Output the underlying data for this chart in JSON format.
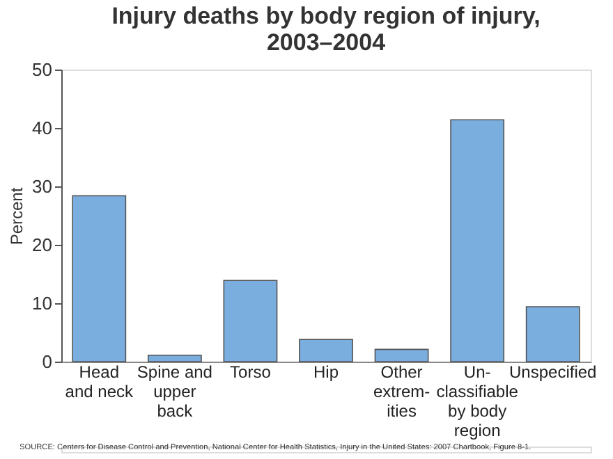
{
  "chart_data": {
    "type": "bar",
    "title": "Injury deaths by body region of injury,\n2003–2004",
    "ylabel": "Percent",
    "categories": [
      "Head\nand neck",
      "Spine and\nupper\nback",
      "Torso",
      "Hip",
      "Other\nextrem-\nities",
      "Un-\nclassifiable\nby body\nregion",
      "Unspecified"
    ],
    "values": [
      28.4,
      1.1,
      13.9,
      3.8,
      2.1,
      41.4,
      9.4
    ],
    "color": "#7aaedf",
    "ylim": [
      0,
      50
    ],
    "yticks": [
      0,
      10,
      20,
      30,
      40,
      50
    ],
    "grid": false,
    "annotations": [
      "SOURCE: Centers for Disease Control and Prevention, National Center for Health Statistics, Injury in the United States: 2007 Chartbook, Figure 8-1."
    ]
  }
}
